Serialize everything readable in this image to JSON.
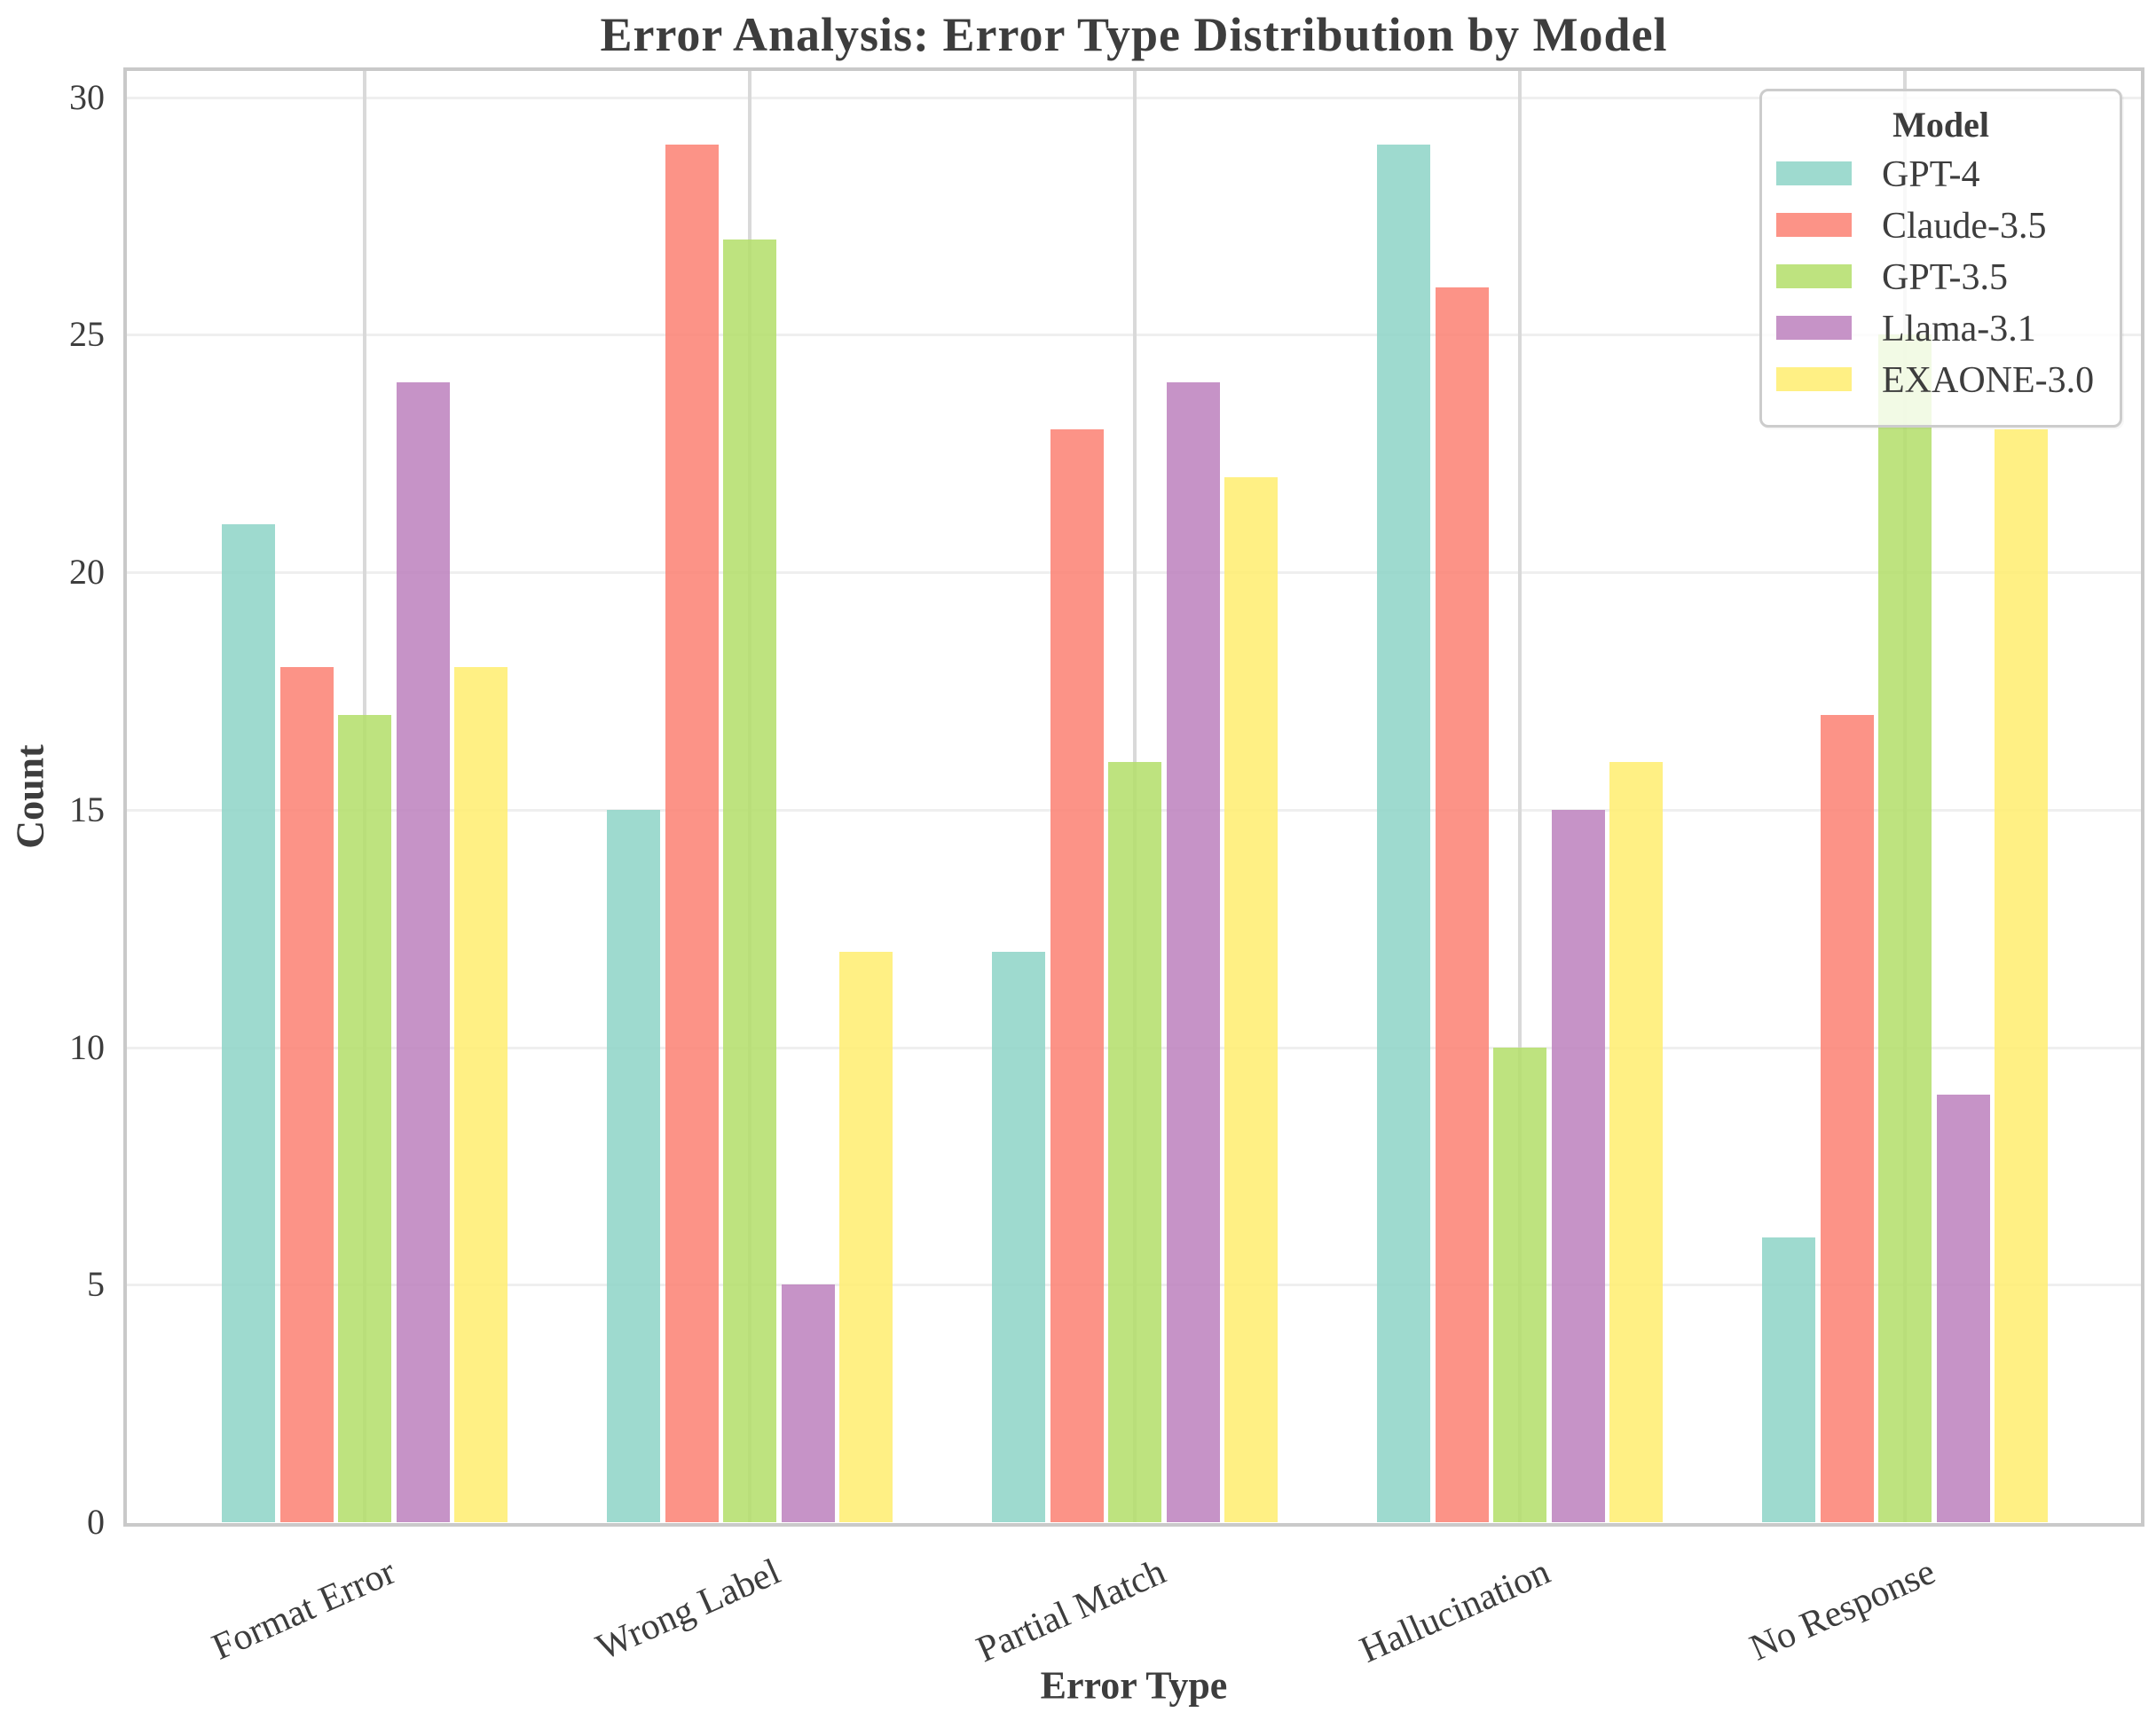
{
  "page": {
    "kind": "matplotlib-style grouped bar chart figure"
  },
  "chart_data": {
    "type": "bar",
    "title": "Error Analysis: Error Type Distribution by Model",
    "xlabel": "Error Type",
    "ylabel": "Count",
    "categories": [
      "Format Error",
      "Wrong Label",
      "Partial Match",
      "Hallucination",
      "No Response"
    ],
    "series": [
      {
        "name": "GPT-4",
        "color": "#8dd3c7",
        "values": [
          21,
          15,
          12,
          29,
          6
        ]
      },
      {
        "name": "Claude-3.5",
        "color": "#fb8072",
        "values": [
          18,
          29,
          23,
          26,
          17
        ]
      },
      {
        "name": "GPT-3.5",
        "color": "#b3de69",
        "values": [
          17,
          27,
          16,
          10,
          25
        ]
      },
      {
        "name": "Llama-3.1",
        "color": "#bc80bd",
        "values": [
          24,
          5,
          24,
          15,
          9
        ]
      },
      {
        "name": "EXAONE-3.0",
        "color": "#ffed6f",
        "values": [
          18,
          12,
          22,
          16,
          23
        ]
      }
    ],
    "bar_alpha": 0.85,
    "ylim": [
      0,
      30.5
    ],
    "yticks": [
      0,
      5,
      10,
      15,
      20,
      25,
      30
    ],
    "grid": {
      "horizontal": true,
      "vertical": true
    },
    "legend": {
      "title": "Model",
      "position": "upper-right"
    },
    "xtick_rotation_deg": 24
  },
  "colors": {
    "text": "#3d3d3d",
    "spine": "#c9c9c9",
    "hgrid": "#efefef",
    "vgrid": "#d9d9d9",
    "legend_border": "#cccccc",
    "background": "#ffffff"
  }
}
